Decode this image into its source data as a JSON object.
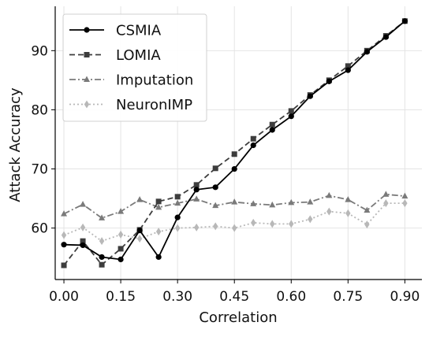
{
  "chart_data": {
    "type": "line",
    "title": "",
    "xlabel": "Correlation",
    "ylabel": "Attack Accuracy",
    "x": [
      0.0,
      0.05,
      0.1,
      0.15,
      0.2,
      0.25,
      0.3,
      0.35,
      0.4,
      0.45,
      0.5,
      0.55,
      0.6,
      0.65,
      0.7,
      0.75,
      0.8,
      0.85,
      0.9
    ],
    "xticks": [
      "0.00",
      "0.15",
      "0.30",
      "0.45",
      "0.60",
      "0.75",
      "0.90"
    ],
    "xtick_values": [
      0.0,
      0.15,
      0.3,
      0.45,
      0.6,
      0.75,
      0.9
    ],
    "yticks": [
      "60",
      "70",
      "80",
      "90"
    ],
    "ytick_values": [
      60,
      70,
      80,
      90
    ],
    "xlim": [
      -0.023,
      0.945
    ],
    "ylim": [
      51.3,
      97.5
    ],
    "grid": true,
    "legend_position": "top-left",
    "series": [
      {
        "name": "CSMIA",
        "color": "#000000",
        "dash": "solid",
        "marker": "circle",
        "values": [
          57.2,
          57.1,
          55.1,
          54.7,
          59.6,
          55.1,
          61.8,
          66.5,
          66.9,
          70.0,
          74.0,
          76.6,
          78.9,
          82.3,
          84.8,
          86.7,
          89.8,
          92.3,
          95.0
        ]
      },
      {
        "name": "LOMIA",
        "color": "#3d3d3d",
        "dash": "dashed",
        "marker": "square",
        "values": [
          53.7,
          57.8,
          53.8,
          56.5,
          59.7,
          64.5,
          65.3,
          67.3,
          70.1,
          72.5,
          75.1,
          77.5,
          79.8,
          82.5,
          85.0,
          87.4,
          90.0,
          92.5,
          95.0
        ]
      },
      {
        "name": "Imputation",
        "color": "#7a7a7a",
        "dash": "dashdot",
        "marker": "triangle",
        "values": [
          62.4,
          64.0,
          61.7,
          62.8,
          64.8,
          63.5,
          64.2,
          64.9,
          63.8,
          64.4,
          64.1,
          63.9,
          64.3,
          64.4,
          65.5,
          64.8,
          63.0,
          65.7,
          65.4
        ]
      },
      {
        "name": "NeuronIMP",
        "color": "#b8b8b8",
        "dash": "dotted",
        "marker": "diamond",
        "values": [
          58.8,
          60.1,
          57.8,
          58.9,
          58.2,
          59.4,
          60.0,
          60.1,
          60.3,
          60.0,
          60.9,
          60.7,
          60.7,
          61.5,
          62.8,
          62.5,
          60.6,
          64.2,
          64.2
        ]
      }
    ]
  }
}
